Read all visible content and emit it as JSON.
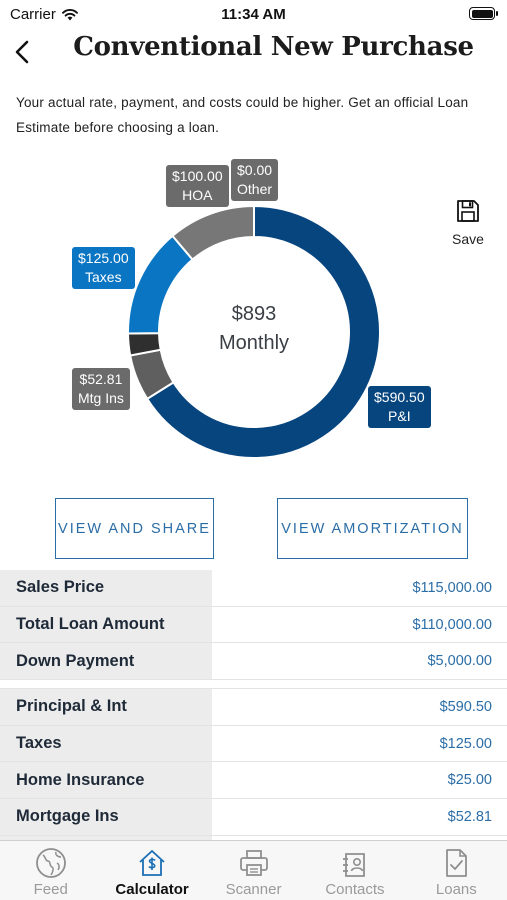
{
  "status_bar": {
    "carrier": "Carrier",
    "time": "11:34 AM"
  },
  "header": {
    "title": "Conventional New Purchase"
  },
  "disclaimer": "Your actual rate, payment, and costs could be higher. Get an official Loan Estimate before choosing a loan.",
  "chart_data": {
    "type": "pie",
    "style": "donut",
    "center_amount": "$893",
    "center_label": "Monthly",
    "slices": [
      {
        "label": "P&I",
        "value": 590.5,
        "display": "$590.50",
        "color": "#07457f"
      },
      {
        "label": "Mtg Ins",
        "value": 52.81,
        "display": "$52.81",
        "color": "#5f5f5f"
      },
      {
        "label": "Home Insurance",
        "value": 25.0,
        "display": "",
        "color": "#2f2f2f"
      },
      {
        "label": "Taxes",
        "value": 125.0,
        "display": "$125.00",
        "color": "#0a75c2"
      },
      {
        "label": "HOA",
        "value": 100.0,
        "display": "$100.00",
        "color": "#777777"
      },
      {
        "label": "Other",
        "value": 0.0,
        "display": "$0.00",
        "color": "#777777"
      }
    ]
  },
  "save": {
    "label": "Save",
    "icon": "floppy-disk-icon"
  },
  "actions": {
    "view_share": "VIEW AND SHARE",
    "view_amortization": "VIEW AMORTIZATION"
  },
  "loan_details": [
    {
      "label": "Sales Price",
      "value": "$115,000.00"
    },
    {
      "label": "Total Loan Amount",
      "value": "$110,000.00"
    },
    {
      "label": "Down Payment",
      "value": "$5,000.00"
    }
  ],
  "payment_details": [
    {
      "label": "Principal & Int",
      "value": "$590.50"
    },
    {
      "label": "Taxes",
      "value": "$125.00"
    },
    {
      "label": "Home Insurance",
      "value": "$25.00"
    },
    {
      "label": "Mortgage Ins",
      "value": "$52.81"
    }
  ],
  "tabs": [
    {
      "label": "Feed",
      "icon": "globe-icon",
      "active": false
    },
    {
      "label": "Calculator",
      "icon": "house-dollar-icon",
      "active": true
    },
    {
      "label": "Scanner",
      "icon": "printer-icon",
      "active": false
    },
    {
      "label": "Contacts",
      "icon": "contacts-icon",
      "active": false
    },
    {
      "label": "Loans",
      "icon": "document-check-icon",
      "active": false
    }
  ]
}
